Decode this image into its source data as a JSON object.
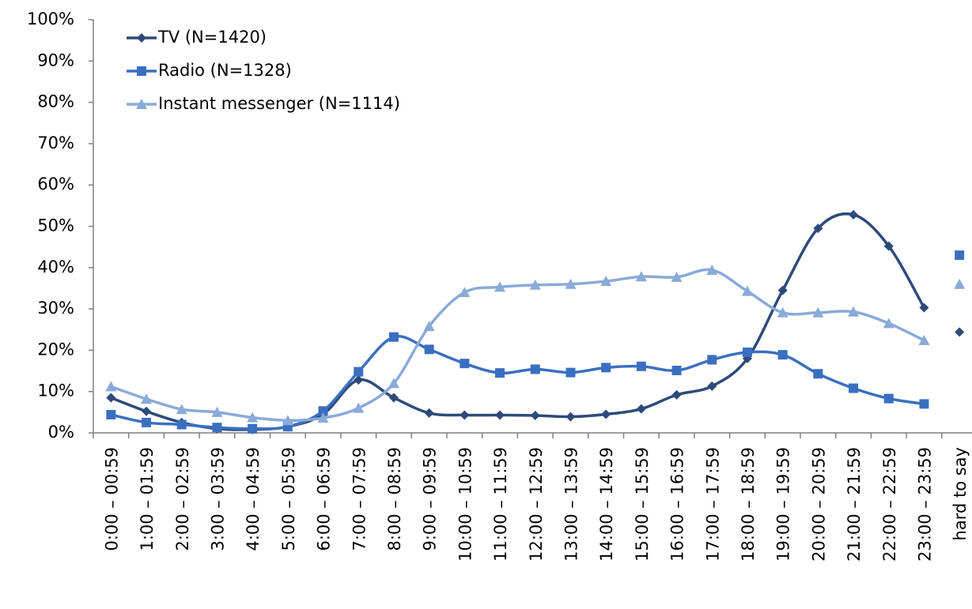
{
  "chart_data": {
    "type": "line",
    "categories": [
      "0:00 – 00:59",
      "1:00 – 01:59",
      "2:00 – 02:59",
      "3:00 – 03:59",
      "4:00 – 04:59",
      "5:00 – 05:59",
      "6:00 – 06:59",
      "7:00 – 07:59",
      "8:00 – 08:59",
      "9:00 – 09:59",
      "10:00 – 10:59",
      "11:00 – 11:59",
      "12:00 – 12:59",
      "13:00 – 13:59",
      "14:00 – 14:59",
      "15:00 – 15:59",
      "16:00 – 16:59",
      "17:00 – 17:59",
      "18:00 – 18:59",
      "19:00 – 19:59",
      "20:00 – 20:59",
      "21:00 – 21:59",
      "22:00 – 22:59",
      "23:00 – 23:59",
      "hard to say"
    ],
    "series": [
      {
        "name": "TV (N=1420)",
        "color": "#2e4a7a",
        "marker": "diamond",
        "values": [
          8.5,
          5.2,
          2.5,
          1.0,
          0.8,
          1.5,
          4.5,
          12.8,
          8.5,
          4.8,
          4.3,
          4.3,
          4.2,
          3.9,
          4.5,
          5.8,
          9.2,
          11.3,
          18,
          34.5,
          49.5,
          52.8,
          45.2,
          30.3,
          24.4
        ]
      },
      {
        "name": "Radio (N=1328)",
        "color": "#3a6fc0",
        "marker": "square",
        "values": [
          4.4,
          2.5,
          2.0,
          1.3,
          1.0,
          1.5,
          5.3,
          14.8,
          23.2,
          20.2,
          16.8,
          14.5,
          15.4,
          14.6,
          15.8,
          16.1,
          15.1,
          17.7,
          19.5,
          18.9,
          14.3,
          10.8,
          8.3,
          7.0,
          43
        ]
      },
      {
        "name": "Instant messenger (N=1114)",
        "color": "#8aaad8",
        "marker": "triangle",
        "values": [
          11.2,
          8.2,
          5.7,
          5.0,
          3.7,
          3.0,
          3.6,
          6.0,
          12.0,
          25.8,
          34.0,
          35.3,
          35.8,
          36.0,
          36.7,
          37.8,
          37.7,
          39.4,
          34.3,
          29.1,
          29.1,
          29.3,
          26.5,
          22.4,
          36
        ]
      }
    ],
    "ylim": [
      0,
      100
    ],
    "yticks": [
      {
        "value": 0,
        "label": "0%"
      },
      {
        "value": 10,
        "label": "10%"
      },
      {
        "value": 20,
        "label": "20%"
      },
      {
        "value": 30,
        "label": "30%"
      },
      {
        "value": 40,
        "label": "40%"
      },
      {
        "value": 50,
        "label": "50%"
      },
      {
        "value": 60,
        "label": "60%"
      },
      {
        "value": 70,
        "label": "70%"
      },
      {
        "value": 80,
        "label": "80%"
      },
      {
        "value": 90,
        "label": "90%"
      },
      {
        "value": 100,
        "label": "100%"
      }
    ],
    "legend": "upper left",
    "smooth": true
  }
}
